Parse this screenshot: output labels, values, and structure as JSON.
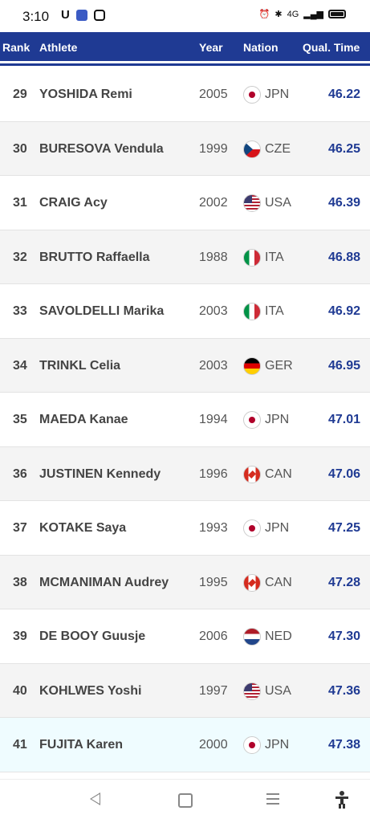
{
  "status": {
    "time": "3:10",
    "network": "4G"
  },
  "header": {
    "rank": "Rank",
    "athlete": "Athlete",
    "year": "Year",
    "nation": "Nation",
    "time": "Qual. Time"
  },
  "rows": [
    {
      "rank": "29",
      "name": "YOSHIDA Remi",
      "year": "2005",
      "nation": "JPN",
      "time": "46.22"
    },
    {
      "rank": "30",
      "name": "BURESOVA Vendula",
      "year": "1999",
      "nation": "CZE",
      "time": "46.25"
    },
    {
      "rank": "31",
      "name": "CRAIG Acy",
      "year": "2002",
      "nation": "USA",
      "time": "46.39"
    },
    {
      "rank": "32",
      "name": "BRUTTO Raffaella",
      "year": "1988",
      "nation": "ITA",
      "time": "46.88"
    },
    {
      "rank": "33",
      "name": "SAVOLDELLI Marika",
      "year": "2003",
      "nation": "ITA",
      "time": "46.92"
    },
    {
      "rank": "34",
      "name": "TRINKL Celia",
      "year": "2003",
      "nation": "GER",
      "time": "46.95"
    },
    {
      "rank": "35",
      "name": "MAEDA Kanae",
      "year": "1994",
      "nation": "JPN",
      "time": "47.01"
    },
    {
      "rank": "36",
      "name": "JUSTINEN Kennedy",
      "year": "1996",
      "nation": "CAN",
      "time": "47.06"
    },
    {
      "rank": "37",
      "name": "KOTAKE Saya",
      "year": "1993",
      "nation": "JPN",
      "time": "47.25"
    },
    {
      "rank": "38",
      "name": "MCMANIMAN Audrey",
      "year": "1995",
      "nation": "CAN",
      "time": "47.28"
    },
    {
      "rank": "39",
      "name": "DE BOOY Guusje",
      "year": "2006",
      "nation": "NED",
      "time": "47.30"
    },
    {
      "rank": "40",
      "name": "KOHLWES Yoshi",
      "year": "1997",
      "nation": "USA",
      "time": "47.36"
    },
    {
      "rank": "41",
      "name": "FUJITA Karen",
      "year": "2000",
      "nation": "JPN",
      "time": "47.38"
    }
  ],
  "colors": {
    "header_bg": "#1f3a93",
    "time_text": "#1f3a93",
    "highlight_row": "#effcff"
  }
}
